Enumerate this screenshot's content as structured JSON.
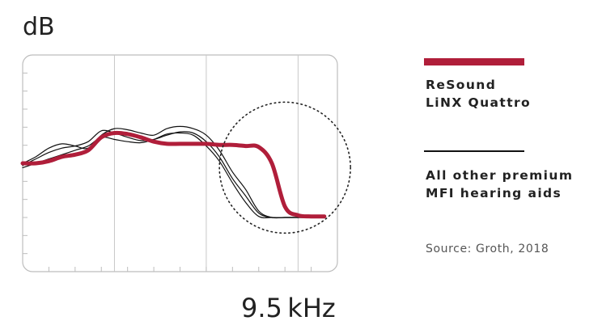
{
  "chart_data": {
    "type": "line",
    "ylabel": "dB",
    "xlabel": "9.5 kHz",
    "x": [
      0,
      0.5,
      1,
      1.5,
      2,
      2.5,
      3,
      3.5,
      4,
      4.5,
      5,
      5.5,
      6,
      6.5,
      7,
      7.5,
      8,
      8.5,
      9,
      9.5,
      10,
      10.5,
      11,
      11.5
    ],
    "series": [
      {
        "name": "ReSound LiNX Quattro",
        "color": "#b01e3a",
        "values": [
          50,
          50,
          51,
          53,
          54,
          56,
          62,
          64,
          63.5,
          62,
          60,
          59,
          59,
          59,
          59,
          58.5,
          58.5,
          58,
          57.5,
          50,
          30,
          26,
          25.5,
          25.5
        ]
      },
      {
        "name": "All other premium MFI hearing aids",
        "color": "#111111",
        "values": [
          50,
          53,
          57,
          59,
          58,
          57,
          63,
          66,
          65.5,
          64,
          63,
          66,
          67,
          66,
          63,
          56,
          46,
          38,
          28,
          25,
          25,
          25,
          25,
          25
        ]
      },
      {
        "name": "All other premium MFI hearing aids",
        "color": "#111111",
        "values": [
          49,
          52,
          55,
          57,
          58,
          60,
          65,
          64,
          62,
          60.5,
          61,
          63,
          64.5,
          64,
          60,
          53,
          43,
          35,
          27,
          25,
          25,
          25,
          25,
          25
        ]
      },
      {
        "name": "All other premium MFI hearing aids",
        "color": "#111111",
        "values": [
          48,
          50,
          52,
          54,
          56,
          58,
          62,
          61,
          60,
          59.5,
          61,
          63.5,
          64,
          63,
          58,
          51,
          41,
          32,
          25.5,
          25,
          25,
          25,
          25,
          25
        ]
      }
    ],
    "xlim": [
      0,
      12
    ],
    "ylim": [
      0,
      100
    ],
    "highlight_circle": {
      "cx": 10,
      "cy": 48,
      "r_data_x": 2.5
    },
    "grid": true
  },
  "legend": {
    "resound_line1": "ReSound",
    "resound_line2": "LiNX Quattro",
    "others_line1": "All other premium",
    "others_line2": "MFI hearing aids"
  },
  "source": "Source: Groth, 2018"
}
